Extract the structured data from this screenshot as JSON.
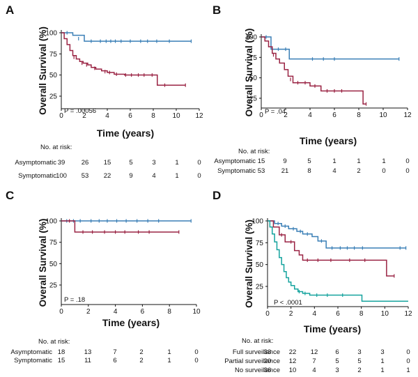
{
  "colors": {
    "asymptomatic": "#3a7fb6",
    "symptomatic": "#9a2343",
    "full": "#3a7fb6",
    "partial": "#9a2343",
    "none": "#15a39e"
  },
  "chart_data": [
    {
      "panel": "A",
      "type": "line",
      "ylabel": "Overall Survival (%)",
      "xlabel": "Time (years)",
      "xlim": [
        0,
        12
      ],
      "ylim": [
        25,
        100
      ],
      "xticks": [
        "0",
        "2",
        "4",
        "6",
        "8",
        "10",
        "12"
      ],
      "yticks": [
        "100",
        "75",
        "50",
        "25"
      ],
      "p_value": "P = .00056",
      "risk_header": "No. at risk:",
      "series": [
        {
          "name": "Asymptomatic",
          "color": "#3a7fb6",
          "steps": [
            [
              0,
              100
            ],
            [
              1,
              97
            ],
            [
              2,
              90
            ],
            [
              11.3,
              90
            ]
          ],
          "censor": [
            [
              0.5,
              100
            ],
            [
              1.5,
              93
            ],
            [
              2.6,
              90
            ],
            [
              3.4,
              90
            ],
            [
              3.9,
              90
            ],
            [
              4.3,
              90
            ],
            [
              4.7,
              90
            ],
            [
              5.2,
              90
            ],
            [
              6,
              90
            ],
            [
              6.9,
              90
            ],
            [
              7.5,
              90
            ],
            [
              8.3,
              90
            ],
            [
              9.4,
              90
            ],
            [
              11.3,
              90
            ]
          ],
          "risk": [
            "39",
            "26",
            "15",
            "5",
            "3",
            "1",
            "0"
          ]
        },
        {
          "name": "Symptomatic",
          "color": "#9a2343",
          "steps": [
            [
              0,
              100
            ],
            [
              0.25,
              93
            ],
            [
              0.5,
              86
            ],
            [
              0.75,
              79
            ],
            [
              1,
              73
            ],
            [
              1.3,
              69
            ],
            [
              1.6,
              66
            ],
            [
              1.9,
              64
            ],
            [
              2.3,
              62
            ],
            [
              2.6,
              59
            ],
            [
              3,
              57
            ],
            [
              3.5,
              55
            ],
            [
              4,
              53
            ],
            [
              4.6,
              51
            ],
            [
              5.5,
              50
            ],
            [
              8.3,
              50
            ],
            [
              8.35,
              38
            ],
            [
              10.8,
              38
            ]
          ],
          "censor": [
            [
              1.1,
              71
            ],
            [
              1.8,
              64
            ],
            [
              2.2,
              62
            ],
            [
              2.9,
              58
            ],
            [
              3.8,
              54
            ],
            [
              4.2,
              53
            ],
            [
              4.8,
              51
            ],
            [
              5.6,
              50
            ],
            [
              6.1,
              50
            ],
            [
              6.7,
              50
            ],
            [
              7.2,
              50
            ],
            [
              7.9,
              50
            ],
            [
              9,
              38
            ],
            [
              10.8,
              38
            ]
          ],
          "risk": [
            "100",
            "53",
            "22",
            "9",
            "4",
            "1",
            "0"
          ]
        }
      ]
    },
    {
      "panel": "B",
      "type": "line",
      "ylabel": "Overall Survival (%)",
      "xlabel": "Time (years)",
      "xlim": [
        0,
        12
      ],
      "ylim": [
        25,
        100
      ],
      "xticks": [
        "0",
        "2",
        "4",
        "6",
        "8",
        "10",
        "12"
      ],
      "yticks": [
        "100",
        "75",
        "50",
        "25"
      ],
      "p_value": "P = .04",
      "risk_header": "No. at risk:",
      "series": [
        {
          "name": "Asymptomatic",
          "color": "#3a7fb6",
          "steps": [
            [
              0,
              100
            ],
            [
              0.8,
              85
            ],
            [
              2.3,
              73
            ],
            [
              11.3,
              73
            ]
          ],
          "censor": [
            [
              0.4,
              100
            ],
            [
              1.4,
              85
            ],
            [
              2,
              85
            ],
            [
              4.2,
              73
            ],
            [
              5.1,
              73
            ],
            [
              6,
              73
            ],
            [
              11.3,
              73
            ]
          ],
          "risk": [
            "15",
            "9",
            "5",
            "1",
            "1",
            "1",
            "0"
          ]
        },
        {
          "name": "Symptomatic",
          "color": "#9a2343",
          "steps": [
            [
              0,
              100
            ],
            [
              0.3,
              95
            ],
            [
              0.6,
              88
            ],
            [
              0.9,
              80
            ],
            [
              1.2,
              73
            ],
            [
              1.5,
              68
            ],
            [
              1.9,
              60
            ],
            [
              2.2,
              52
            ],
            [
              2.6,
              44
            ],
            [
              4,
              40
            ],
            [
              4.9,
              34
            ],
            [
              8.3,
              34
            ],
            [
              8.35,
              18
            ],
            [
              8.6,
              18
            ]
          ],
          "censor": [
            [
              1,
              78
            ],
            [
              2.4,
              48
            ],
            [
              3,
              44
            ],
            [
              3.6,
              44
            ],
            [
              4.4,
              40
            ],
            [
              5.4,
              34
            ],
            [
              6,
              34
            ],
            [
              6.6,
              34
            ],
            [
              8.6,
              18
            ]
          ],
          "risk": [
            "53",
            "21",
            "8",
            "4",
            "2",
            "0",
            "0"
          ]
        }
      ]
    },
    {
      "panel": "C",
      "type": "line",
      "ylabel": "Overall Survival (%)",
      "xlabel": "Time (years)",
      "xlim": [
        0,
        10
      ],
      "ylim": [
        25,
        100
      ],
      "xticks": [
        "0",
        "2",
        "4",
        "6",
        "8",
        "10"
      ],
      "yticks": [
        "100",
        "75",
        "50",
        "25"
      ],
      "p_value": "P = .18",
      "risk_header": "No. at risk:",
      "series": [
        {
          "name": "Asymptomatic",
          "color": "#3a7fb6",
          "steps": [
            [
              0,
              100
            ],
            [
              9.6,
              100
            ]
          ],
          "censor": [
            [
              0.4,
              100
            ],
            [
              0.9,
              100
            ],
            [
              1.4,
              100
            ],
            [
              2.2,
              100
            ],
            [
              2.8,
              100
            ],
            [
              3.4,
              100
            ],
            [
              4.1,
              100
            ],
            [
              4.8,
              100
            ],
            [
              5.6,
              100
            ],
            [
              6.4,
              100
            ],
            [
              7.2,
              100
            ],
            [
              9.6,
              100
            ]
          ],
          "risk": [
            "18",
            "13",
            "7",
            "2",
            "1",
            "0"
          ]
        },
        {
          "name": "Symptomatic",
          "color": "#9a2343",
          "steps": [
            [
              0,
              100
            ],
            [
              1,
              87
            ],
            [
              8.7,
              87
            ]
          ],
          "censor": [
            [
              0.6,
              100
            ],
            [
              1.6,
              87
            ],
            [
              2.3,
              87
            ],
            [
              3.2,
              87
            ],
            [
              4,
              87
            ],
            [
              4.7,
              87
            ],
            [
              5.7,
              87
            ],
            [
              6.5,
              87
            ],
            [
              8.7,
              87
            ]
          ],
          "risk": [
            "15",
            "11",
            "6",
            "2",
            "1",
            "0"
          ]
        }
      ]
    },
    {
      "panel": "D",
      "type": "line",
      "ylabel": "Overall Survival (%)",
      "xlabel": "Time (years)",
      "xlim": [
        0,
        12
      ],
      "ylim": [
        0,
        100
      ],
      "xticks": [
        "0",
        "2",
        "4",
        "6",
        "8",
        "10",
        "12"
      ],
      "yticks": [
        "100",
        "75",
        "50",
        "25"
      ],
      "p_value": "P < .0001",
      "risk_header": "No. at risk:",
      "series": [
        {
          "name": "Full surveillance",
          "color": "#3a7fb6",
          "steps": [
            [
              0,
              100
            ],
            [
              0.6,
              97
            ],
            [
              1.2,
              94
            ],
            [
              1.8,
              91
            ],
            [
              2.5,
              88
            ],
            [
              3,
              85
            ],
            [
              3.8,
              82
            ],
            [
              4.3,
              77
            ],
            [
              5,
              69
            ],
            [
              11.8,
              69
            ]
          ],
          "censor": [
            [
              0.9,
              97
            ],
            [
              1.5,
              94
            ],
            [
              2.2,
              91
            ],
            [
              2.8,
              88
            ],
            [
              3.4,
              85
            ],
            [
              4.6,
              77
            ],
            [
              5.5,
              69
            ],
            [
              6.2,
              69
            ],
            [
              6.8,
              69
            ],
            [
              7.4,
              69
            ],
            [
              8.1,
              69
            ],
            [
              11.3,
              69
            ],
            [
              11.8,
              69
            ]
          ],
          "risk": [
            "33",
            "22",
            "12",
            "6",
            "3",
            "3",
            "0"
          ]
        },
        {
          "name": "Partial surveillance",
          "color": "#9a2343",
          "steps": [
            [
              0,
              100
            ],
            [
              0.5,
              93
            ],
            [
              1,
              84
            ],
            [
              1.5,
              76
            ],
            [
              2.3,
              66
            ],
            [
              2.7,
              61
            ],
            [
              3,
              55
            ],
            [
              10.1,
              55
            ],
            [
              10.15,
              37
            ],
            [
              10.8,
              37
            ]
          ],
          "censor": [
            [
              1.2,
              84
            ],
            [
              2,
              76
            ],
            [
              3.4,
              55
            ],
            [
              4.3,
              55
            ],
            [
              5.4,
              55
            ],
            [
              7,
              55
            ],
            [
              8.3,
              55
            ],
            [
              10.8,
              37
            ]
          ],
          "risk": [
            "20",
            "12",
            "7",
            "5",
            "5",
            "1",
            "0"
          ]
        },
        {
          "name": "No surveillance",
          "color": "#15a39e",
          "steps": [
            [
              0,
              100
            ],
            [
              0.2,
              93
            ],
            [
              0.4,
              85
            ],
            [
              0.6,
              76
            ],
            [
              0.8,
              67
            ],
            [
              1,
              58
            ],
            [
              1.2,
              50
            ],
            [
              1.4,
              42
            ],
            [
              1.6,
              35
            ],
            [
              1.8,
              30
            ],
            [
              2,
              26
            ],
            [
              2.3,
              22
            ],
            [
              2.6,
              19
            ],
            [
              3,
              17
            ],
            [
              3.6,
              15
            ],
            [
              8,
              15
            ],
            [
              8.05,
              8
            ],
            [
              12,
              8
            ]
          ],
          "censor": [
            [
              2.7,
              19
            ],
            [
              3.2,
              17
            ],
            [
              4.2,
              15
            ],
            [
              5.1,
              15
            ],
            [
              6.4,
              15
            ]
          ],
          "risk": [
            "36",
            "10",
            "4",
            "3",
            "2",
            "1",
            "1"
          ]
        }
      ]
    }
  ]
}
